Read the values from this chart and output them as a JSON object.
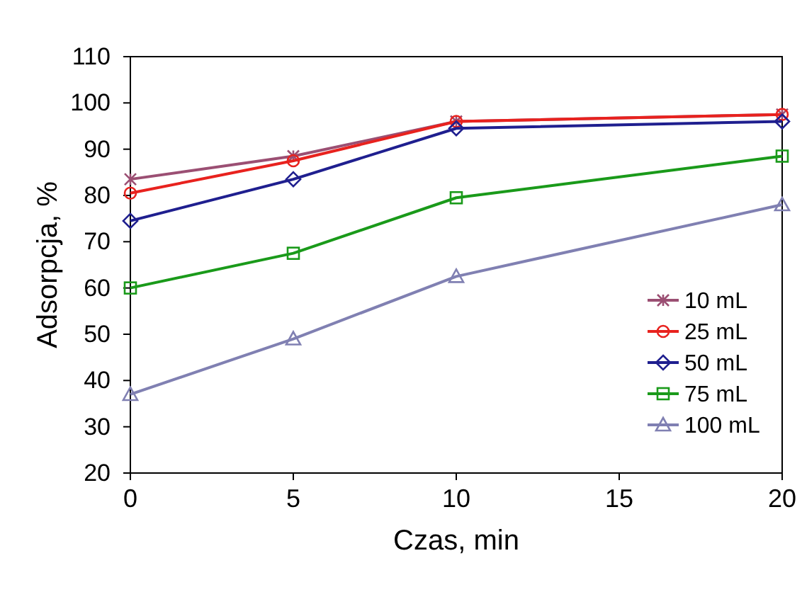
{
  "chart_data": {
    "type": "line",
    "xlabel": "Czas, min",
    "ylabel": "Adsorpcja, %",
    "x": [
      0,
      5,
      10,
      20
    ],
    "xlim": [
      0,
      20
    ],
    "xticks": [
      0,
      5,
      10,
      15,
      20
    ],
    "ylim": [
      20,
      110
    ],
    "yticks": [
      20,
      30,
      40,
      50,
      60,
      70,
      80,
      90,
      100,
      110
    ],
    "grid": false,
    "legend": "bottom right",
    "line_style": "solid",
    "series": [
      {
        "name": "10 mL",
        "color": "#9b4f73",
        "marker": "cross",
        "values": [
          83.5,
          88.5,
          96,
          97.5
        ]
      },
      {
        "name": "25 mL",
        "color": "#e8221e",
        "marker": "circle",
        "values": [
          80.5,
          87.5,
          96,
          97.5
        ]
      },
      {
        "name": "50 mL",
        "color": "#1f1f8f",
        "marker": "diamond",
        "values": [
          74.5,
          83.5,
          94.5,
          96
        ]
      },
      {
        "name": "75 mL",
        "color": "#1a9a1a",
        "marker": "square",
        "values": [
          60,
          67.5,
          79.5,
          88.5
        ]
      },
      {
        "name": "100 mL",
        "color": "#8080b2",
        "marker": "triangle",
        "values": [
          37,
          49,
          62.5,
          78
        ]
      }
    ]
  }
}
